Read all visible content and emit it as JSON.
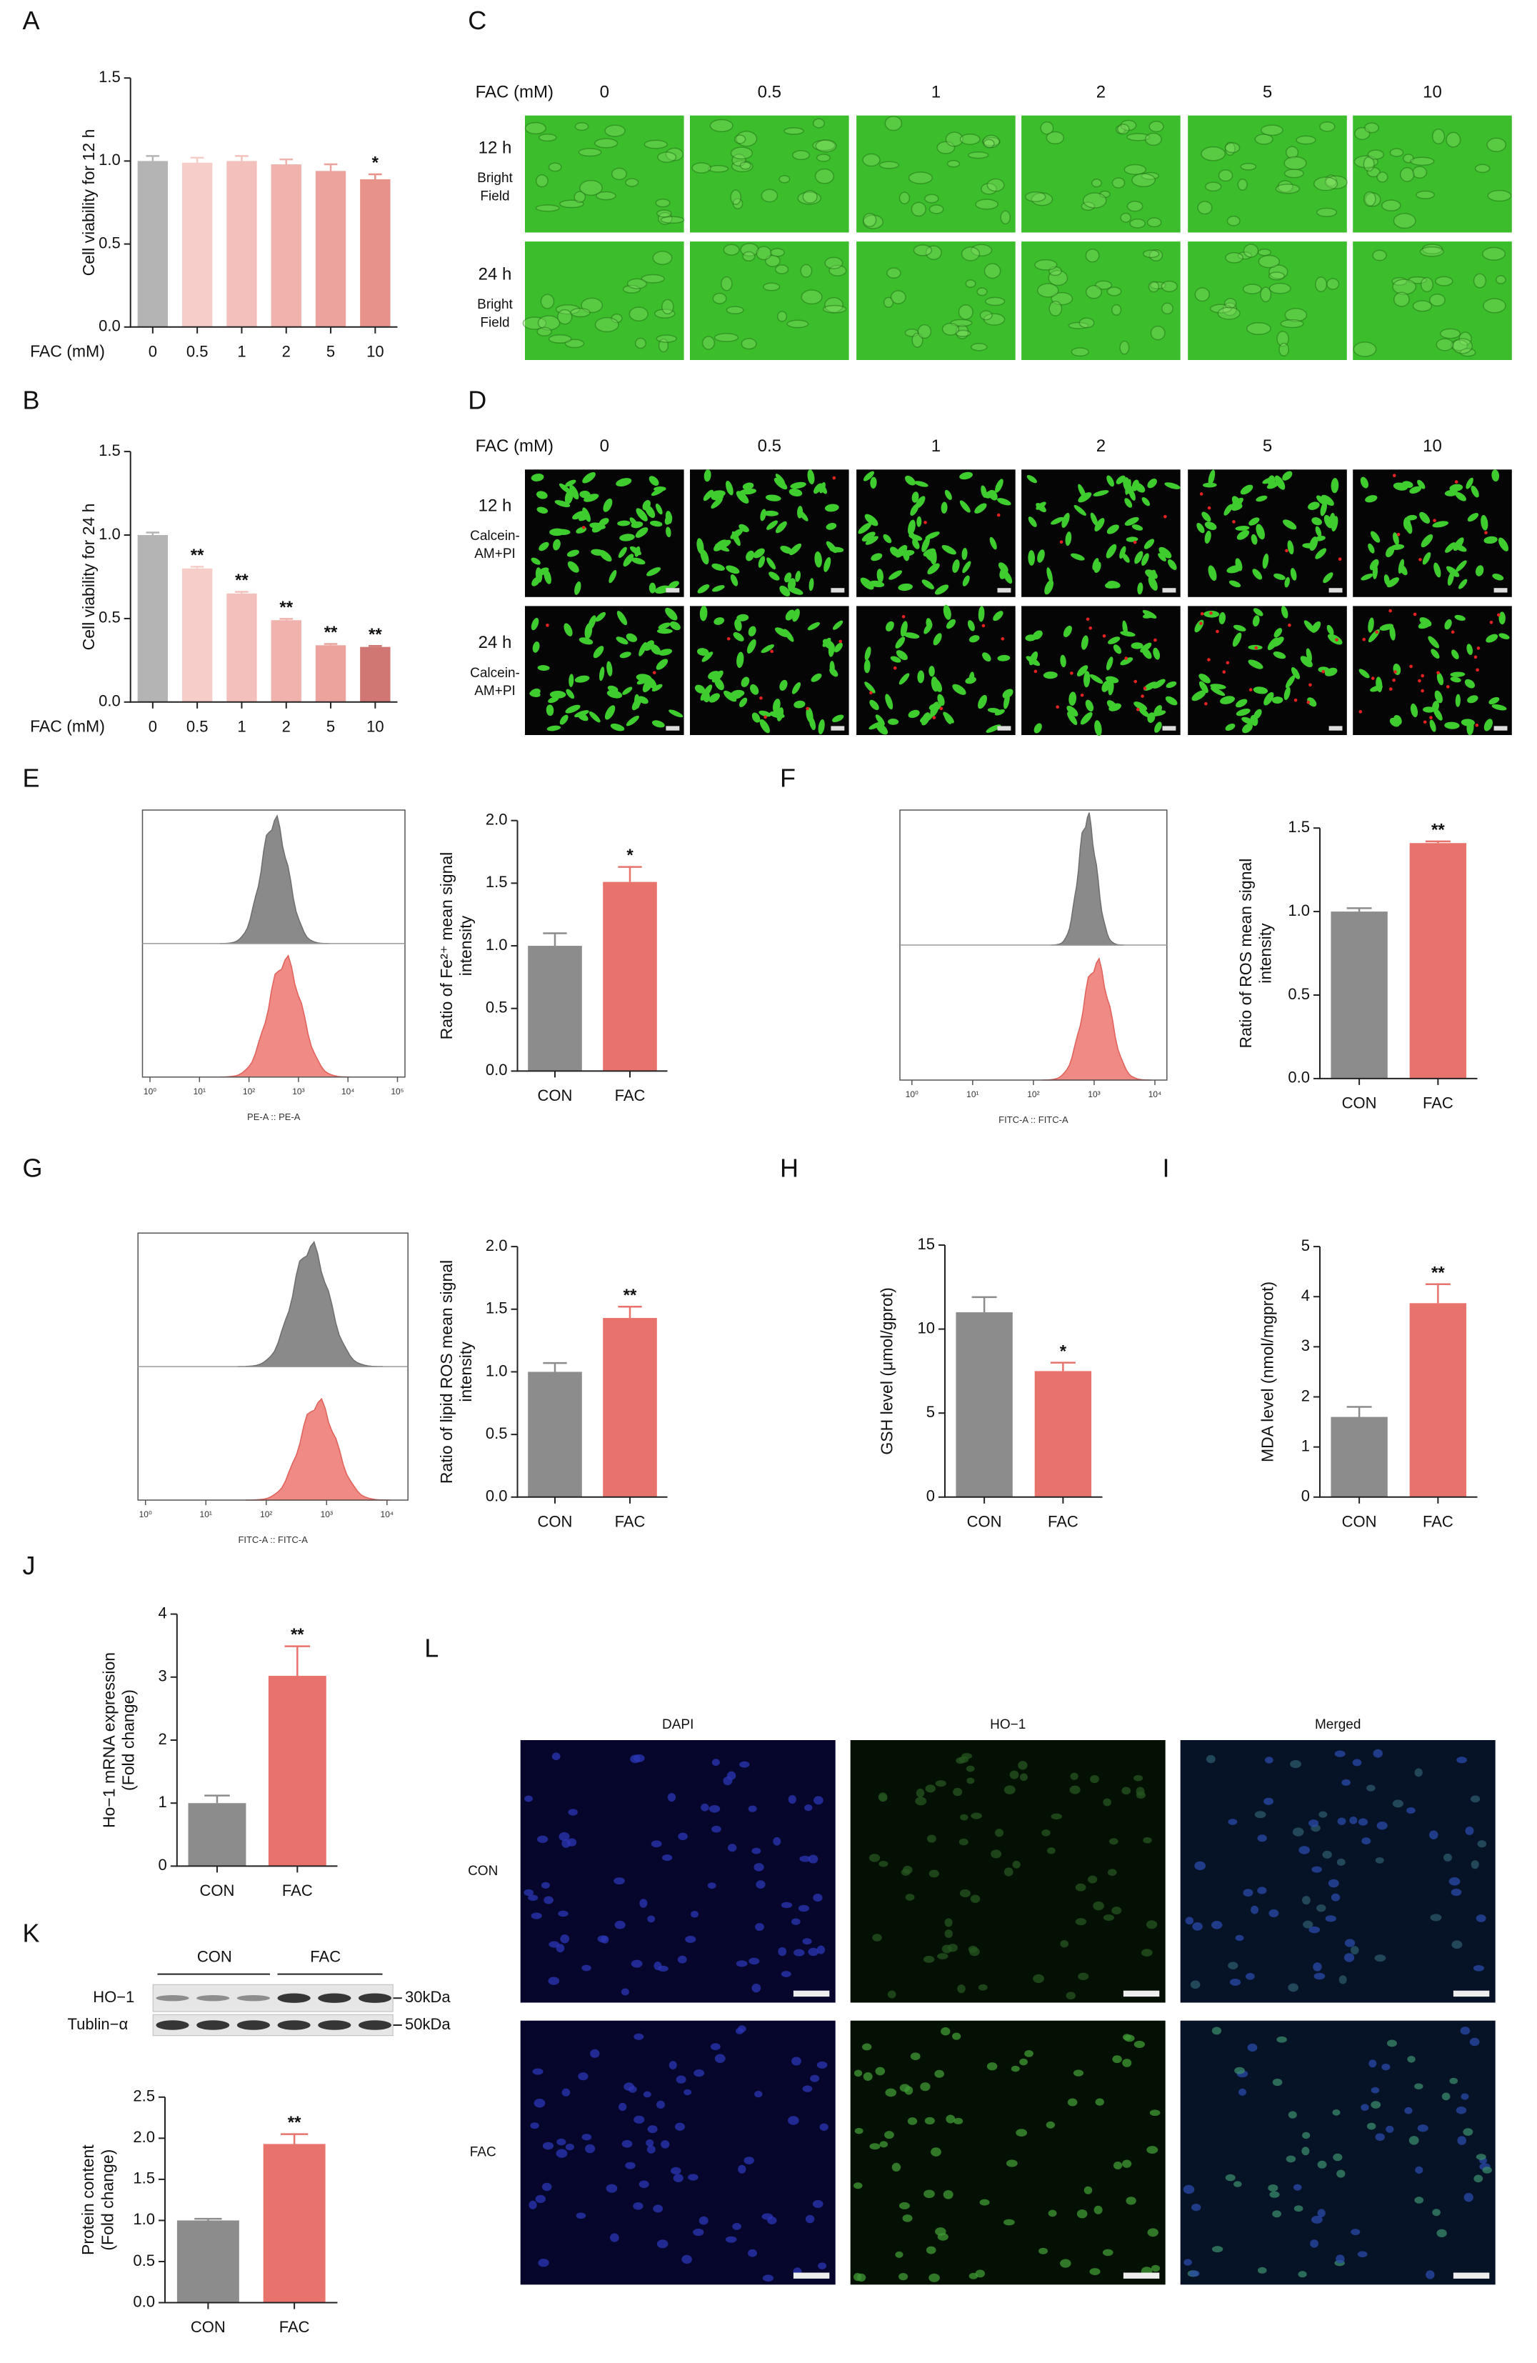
{
  "panel_labels": [
    "A",
    "B",
    "C",
    "D",
    "E",
    "F",
    "G",
    "H",
    "I",
    "J",
    "K",
    "L"
  ],
  "chart_data": [
    {
      "type": "bar",
      "xlabel": "FAC (mM)",
      "ylabel": [
        "Cell viability for 12 h"
      ],
      "categories": [
        "0",
        "0.5",
        "1",
        "2",
        "5",
        "10"
      ],
      "values": [
        1.0,
        0.99,
        1.0,
        0.98,
        0.94,
        0.89
      ],
      "errors": [
        0.03,
        0.03,
        0.03,
        0.03,
        0.04,
        0.03
      ],
      "colors": [
        "#b4b4b4",
        "#f6cdc9",
        "#f3c0bb",
        "#f0b2ac",
        "#eca39d",
        "#e8928c"
      ],
      "annotations": [
        null,
        null,
        null,
        null,
        null,
        "*"
      ],
      "ylim": [
        0,
        1.5
      ],
      "yticks": [
        {
          "value": 0,
          "label": "0.0"
        },
        0.5,
        {
          "value": 1,
          "label": "1.0"
        },
        1.5
      ]
    },
    {
      "type": "bar",
      "xlabel": "FAC (mM)",
      "ylabel": [
        "Cell viability for 24 h"
      ],
      "categories": [
        "0",
        "0.5",
        "1",
        "2",
        "5",
        "10"
      ],
      "values": [
        1.0,
        0.8,
        0.65,
        0.49,
        0.34,
        0.33
      ],
      "errors": [
        0.015,
        0.01,
        0.01,
        0.008,
        0.008,
        0.006
      ],
      "colors": [
        "#b4b4b4",
        "#f6cdc9",
        "#f3c0bb",
        "#f0b2ac",
        "#eca39d",
        "#d07673"
      ],
      "annotations": [
        null,
        "**",
        "**",
        "**",
        "**",
        "**"
      ],
      "ylim": [
        0,
        1.5
      ],
      "yticks": [
        {
          "value": 0,
          "label": "0.0"
        },
        0.5,
        {
          "value": 1,
          "label": "1.0"
        },
        1.5
      ]
    },
    {
      "type": "bar",
      "ylabel": [
        "Ratio of Fe²⁺ mean signal",
        "intensity"
      ],
      "categories": [
        "CON",
        "FAC"
      ],
      "values": [
        1.0,
        1.51
      ],
      "errors": [
        0.1,
        0.12
      ],
      "colors": [
        "#8c8c8c",
        "#e8736c"
      ],
      "annotations": [
        null,
        "*"
      ],
      "ylim": [
        0,
        2
      ],
      "yticks": [
        {
          "value": 0,
          "label": "0.0"
        },
        0.5,
        {
          "value": 1,
          "label": "1.0"
        },
        1.5,
        {
          "value": 2,
          "label": "2.0"
        }
      ]
    },
    {
      "type": "bar",
      "ylabel": [
        "Ratio of ROS mean signal",
        "intensity"
      ],
      "categories": [
        "CON",
        "FAC"
      ],
      "values": [
        1.0,
        1.41
      ],
      "errors": [
        0.02,
        0.01
      ],
      "colors": [
        "#8c8c8c",
        "#e8736c"
      ],
      "annotations": [
        null,
        "**"
      ],
      "ylim": [
        0,
        1.5
      ],
      "yticks": [
        {
          "value": 0,
          "label": "0.0"
        },
        0.5,
        {
          "value": 1,
          "label": "1.0"
        },
        1.5
      ]
    },
    {
      "type": "bar",
      "ylabel": [
        "Ratio of lipid ROS mean signal",
        "intensity"
      ],
      "categories": [
        "CON",
        "FAC"
      ],
      "values": [
        1.0,
        1.43
      ],
      "errors": [
        0.07,
        0.09
      ],
      "colors": [
        "#8c8c8c",
        "#e8736c"
      ],
      "annotations": [
        null,
        "**"
      ],
      "ylim": [
        0,
        2
      ],
      "yticks": [
        {
          "value": 0,
          "label": "0.0"
        },
        0.5,
        {
          "value": 1,
          "label": "1.0"
        },
        1.5,
        {
          "value": 2,
          "label": "2.0"
        }
      ]
    },
    {
      "type": "bar",
      "ylabel": [
        "GSH level (μmol/gprot)"
      ],
      "categories": [
        "CON",
        "FAC"
      ],
      "values": [
        11.0,
        7.5
      ],
      "errors": [
        0.9,
        0.5
      ],
      "colors": [
        "#8c8c8c",
        "#e8736c"
      ],
      "annotations": [
        null,
        "*"
      ],
      "ylim": [
        0,
        15
      ],
      "yticks": [
        0,
        5,
        10,
        15
      ]
    },
    {
      "type": "bar",
      "ylabel": [
        "MDA level (nmol/mgprot)"
      ],
      "categories": [
        "CON",
        "FAC"
      ],
      "values": [
        1.6,
        3.87
      ],
      "errors": [
        0.2,
        0.38
      ],
      "colors": [
        "#8c8c8c",
        "#e8736c"
      ],
      "annotations": [
        null,
        "**"
      ],
      "ylim": [
        0,
        5
      ],
      "yticks": [
        0,
        1,
        2,
        3,
        4,
        5
      ]
    },
    {
      "type": "bar",
      "ylabel": [
        "Ho−1 mRNA expression",
        "(Fold change)"
      ],
      "categories": [
        "CON",
        "FAC"
      ],
      "values": [
        1.0,
        3.02
      ],
      "errors": [
        0.12,
        0.47
      ],
      "colors": [
        "#8c8c8c",
        "#e8736c"
      ],
      "annotations": [
        null,
        "**"
      ],
      "ylim": [
        0,
        4
      ],
      "yticks": [
        0,
        1,
        2,
        3,
        4
      ]
    },
    {
      "type": "bar",
      "ylabel": [
        "Protein content",
        "(Fold change)"
      ],
      "categories": [
        "CON",
        "FAC"
      ],
      "values": [
        1.0,
        1.93
      ],
      "errors": [
        0.02,
        0.12
      ],
      "colors": [
        "#8c8c8c",
        "#e8736c"
      ],
      "annotations": [
        null,
        "**"
      ],
      "ylim": [
        0,
        2.5
      ],
      "yticks": [
        {
          "value": 0,
          "label": "0.0"
        },
        0.5,
        {
          "value": 1,
          "label": "1.0"
        },
        1.5,
        {
          "value": 2,
          "label": "2.0"
        },
        2.5
      ]
    }
  ],
  "flow_cytometry": [
    {
      "xlabel": "PE-A :: PE-A",
      "log_x": true,
      "xlim": [
        1,
        100000
      ],
      "xticks": [
        {
          "value": 1,
          "label": "10⁰"
        },
        {
          "value": 10,
          "label": "10¹"
        },
        {
          "value": 100,
          "label": "10²"
        },
        {
          "value": 1000,
          "label": "10³"
        },
        {
          "value": 10000,
          "label": "10⁴"
        },
        {
          "value": 100000,
          "label": "10⁵"
        }
      ]
    },
    {
      "xlabel": "FITC-A :: FITC-A",
      "log_x": true,
      "xlim": [
        1,
        10000
      ],
      "xticks": [
        {
          "value": 1,
          "label": "10⁰"
        },
        {
          "value": 10,
          "label": "10¹"
        },
        {
          "value": 100,
          "label": "10²"
        },
        {
          "value": 1000,
          "label": "10³"
        },
        {
          "value": 10000,
          "label": "10⁴"
        }
      ]
    },
    {
      "xlabel": "FITC-A :: FITC-A",
      "log_x": true,
      "xlim": [
        1,
        10000
      ],
      "xticks": [
        {
          "value": 1,
          "label": "10⁰"
        },
        {
          "value": 10,
          "label": "10¹"
        },
        {
          "value": 100,
          "label": "10²"
        },
        {
          "value": 1000,
          "label": "10³"
        },
        {
          "value": 10000,
          "label": "10⁴"
        }
      ]
    }
  ],
  "micrographs": {
    "C": {
      "header": "FAC (mM)",
      "columns": [
        "0",
        "0.5",
        "1",
        "2",
        "5",
        "10"
      ],
      "rows": [
        [
          "12 h",
          "Bright",
          "Field"
        ],
        [
          "24 h",
          "Bright",
          "Field"
        ]
      ]
    },
    "D": {
      "header": "FAC (mM)",
      "columns": [
        "0",
        "0.5",
        "1",
        "2",
        "5",
        "10"
      ],
      "rows": [
        [
          "12 h",
          "Calcein-",
          "AM+PI"
        ],
        [
          "24 h",
          "Calcein-",
          "AM+PI"
        ]
      ]
    },
    "L": {
      "columns": [
        "DAPI",
        "HO−1",
        "Merged"
      ],
      "rows": [
        "CON",
        "FAC"
      ]
    }
  },
  "blot": {
    "groups": [
      "CON",
      "FAC"
    ],
    "rows": [
      "HO−1",
      "Tublin−α"
    ],
    "sizes": [
      "30kDa",
      "50kDa"
    ]
  }
}
